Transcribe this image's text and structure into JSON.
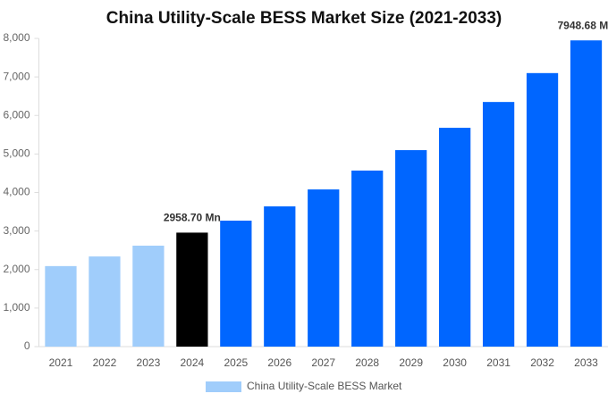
{
  "chart_data": {
    "type": "bar",
    "title": "China Utility-Scale BESS Market Size (2021-2033)",
    "categories": [
      "2021",
      "2022",
      "2023",
      "2024",
      "2025",
      "2026",
      "2027",
      "2028",
      "2029",
      "2030",
      "2031",
      "2032",
      "2033"
    ],
    "series": [
      {
        "name": "China Utility-Scale BESS Market",
        "color": "#a0cdfb",
        "colors": [
          "#a0cdfb",
          "#a0cdfb",
          "#a0cdfb",
          "#000000",
          "#0066ff",
          "#0066ff",
          "#0066ff",
          "#0066ff",
          "#0066ff",
          "#0066ff",
          "#0066ff",
          "#0066ff",
          "#0066ff"
        ],
        "values": [
          2090,
          2340,
          2620,
          2958.7,
          3270,
          3640,
          4080,
          4570,
          5100,
          5680,
          6350,
          7100,
          7948.68
        ],
        "value_labels": [
          null,
          null,
          null,
          "2958.70 Mn",
          null,
          null,
          null,
          null,
          null,
          null,
          null,
          null,
          "7948.68 Mn"
        ]
      }
    ],
    "ylim": [
      0,
      8000
    ],
    "yticks": [
      0,
      {
        "value": 1000,
        "label": "1,000"
      },
      {
        "value": 2000,
        "label": "2,000"
      },
      {
        "value": 3000,
        "label": "3,000"
      },
      {
        "value": 4000,
        "label": "4,000"
      },
      {
        "value": 5000,
        "label": "5,000"
      },
      {
        "value": 6000,
        "label": "6,000"
      },
      {
        "value": 7000,
        "label": "7,000"
      },
      {
        "value": 8000,
        "label": "8,000"
      }
    ],
    "grid": false
  }
}
